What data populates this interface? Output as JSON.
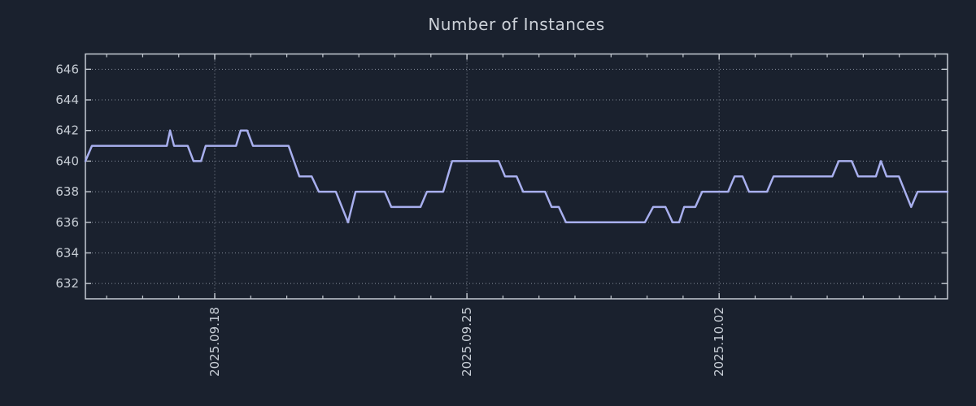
{
  "page": {
    "title": "Number of Instances"
  },
  "colors": {
    "background": "#1a212e",
    "line": "#a8afee",
    "text": "#c6ccd4",
    "grid": "#99a1af",
    "frame": "#c5cbd3"
  },
  "chart_data": {
    "type": "line",
    "title": "Number of Instances",
    "xlabel": "",
    "ylabel": "",
    "legend": false,
    "grid": true,
    "y_ticks": [
      632,
      634,
      636,
      638,
      640,
      642,
      644,
      646
    ],
    "ylim": [
      631,
      647
    ],
    "xlim_days": [
      0,
      23.93
    ],
    "x_tick_labels": [
      "2025.09.18",
      "2025.09.25",
      "2025.10.02"
    ],
    "x_tick_positions_days": [
      3.59,
      10.59,
      17.59
    ],
    "x_minor_ticks": {
      "first_day": 0.59,
      "interval_days": 1
    },
    "series": [
      {
        "name": "instances",
        "color": "#a8afee",
        "points_day_value": [
          [
            0.0,
            640
          ],
          [
            0.18,
            641
          ],
          [
            2.26,
            641
          ],
          [
            2.35,
            642
          ],
          [
            2.46,
            641
          ],
          [
            2.84,
            641
          ],
          [
            3.0,
            640
          ],
          [
            3.21,
            640
          ],
          [
            3.34,
            641
          ],
          [
            4.18,
            641
          ],
          [
            4.31,
            642
          ],
          [
            4.49,
            642
          ],
          [
            4.65,
            641
          ],
          [
            5.64,
            641
          ],
          [
            5.94,
            639
          ],
          [
            6.28,
            639
          ],
          [
            6.48,
            638
          ],
          [
            6.95,
            638
          ],
          [
            7.29,
            636
          ],
          [
            7.5,
            638
          ],
          [
            8.31,
            638
          ],
          [
            8.49,
            637
          ],
          [
            9.3,
            637
          ],
          [
            9.48,
            638
          ],
          [
            9.93,
            638
          ],
          [
            10.18,
            640
          ],
          [
            11.47,
            640
          ],
          [
            11.65,
            639
          ],
          [
            11.97,
            639
          ],
          [
            12.15,
            638
          ],
          [
            12.76,
            638
          ],
          [
            12.94,
            637
          ],
          [
            13.14,
            637
          ],
          [
            13.34,
            636
          ],
          [
            15.53,
            636
          ],
          [
            15.76,
            637
          ],
          [
            16.1,
            637
          ],
          [
            16.3,
            636
          ],
          [
            16.48,
            636
          ],
          [
            16.62,
            637
          ],
          [
            16.93,
            637
          ],
          [
            17.12,
            638
          ],
          [
            17.84,
            638
          ],
          [
            18.02,
            639
          ],
          [
            18.24,
            639
          ],
          [
            18.42,
            638
          ],
          [
            18.92,
            638
          ],
          [
            19.1,
            639
          ],
          [
            20.73,
            639
          ],
          [
            20.91,
            640
          ],
          [
            21.27,
            640
          ],
          [
            21.45,
            639
          ],
          [
            21.94,
            639
          ],
          [
            22.08,
            640
          ],
          [
            22.24,
            639
          ],
          [
            22.58,
            639
          ],
          [
            22.92,
            637
          ],
          [
            23.1,
            638
          ],
          [
            23.93,
            638
          ]
        ]
      }
    ]
  }
}
